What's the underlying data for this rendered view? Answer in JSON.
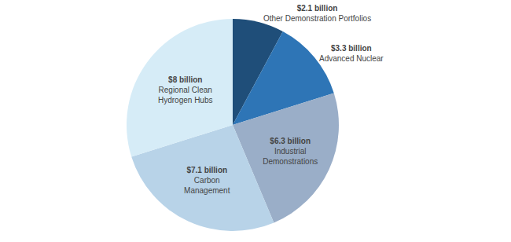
{
  "chart_data": {
    "type": "pie",
    "categories": [
      "Other Demonstration Portfolios",
      "Advanced Nuclear",
      "Industrial\nDemonstrations",
      "Carbon\nManagement",
      "Regional Clean\nHydrogen Hubs"
    ],
    "values": [
      2.1,
      3.3,
      6.3,
      7.1,
      8.0
    ],
    "value_labels": [
      "$2.1 billion",
      "$3.3 billion",
      "$6.3 billion",
      "$7.1 billion",
      "$8 billion"
    ],
    "colors": [
      "#1f4e79",
      "#2e75b6",
      "#9aaec8",
      "#b8d3e8",
      "#d6ecf7"
    ],
    "data_labels": true
  }
}
